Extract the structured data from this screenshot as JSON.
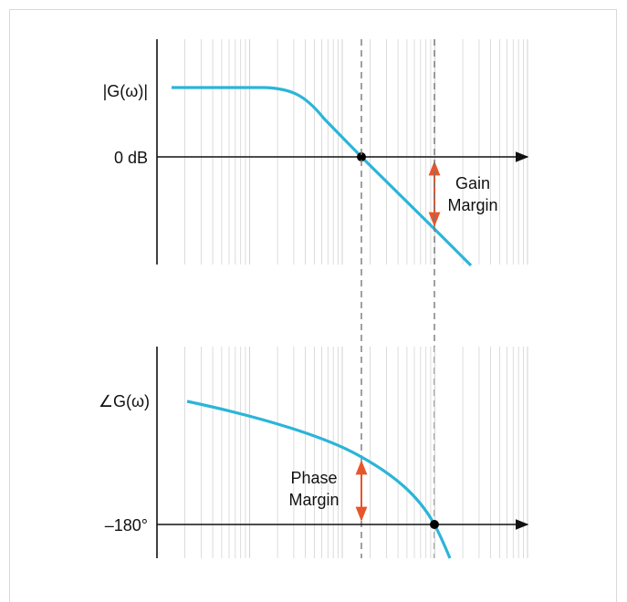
{
  "labels": {
    "magnitude": "|G(ω)|",
    "zero_db": "0 dB",
    "gain_margin_line1": "Gain",
    "gain_margin_line2": "Margin",
    "phase": "∠G(ω)",
    "minus_180": "–180°",
    "phase_margin_line1": "Phase",
    "phase_margin_line2": "Margin"
  },
  "colors": {
    "curve": "#2bb5d8",
    "margin_arrow": "#e8552a",
    "axis": "#111111",
    "grid": "#d4d4d4",
    "marker": "#000000",
    "guide": "#777777"
  }
}
